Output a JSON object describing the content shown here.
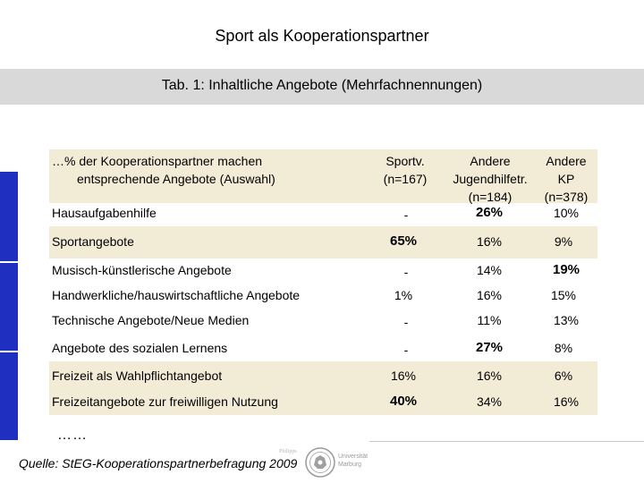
{
  "page": {
    "title": "Sport als Kooperationspartner",
    "subtitle": "Tab. 1: Inhaltliche Angebote (Mehrfachnennungen)"
  },
  "table": {
    "header_left": [
      "…% der Kooperationspartner machen",
      "entsprechende Angebote (Auswahl)"
    ],
    "columns": [
      {
        "lines": [
          "Sportv.",
          "(n=167)"
        ]
      },
      {
        "lines": [
          "Andere",
          "Jugendhilfetr.",
          "(n=184)"
        ]
      },
      {
        "lines": [
          "Andere",
          "KP",
          "(n=378)"
        ]
      }
    ],
    "rows": [
      {
        "label": "Hausaufgabenhilfe",
        "values": [
          "-",
          "26%",
          "10%"
        ]
      },
      {
        "label": "Sportangebote",
        "values": [
          "65%",
          "16%",
          "9%"
        ]
      },
      {
        "label": "Musisch-künstlerische Angebote",
        "values": [
          "-",
          "14%",
          "19%"
        ]
      },
      {
        "label": "Handwerkliche/hauswirtschaftliche Angebote",
        "values": [
          "1%",
          "16%",
          "15%"
        ]
      },
      {
        "label": "Technische Angebote/Neue Medien",
        "values": [
          "-",
          "11%",
          "13%"
        ]
      },
      {
        "label": "Angebote des sozialen Lernens",
        "values": [
          "-",
          "27%",
          "8%"
        ]
      },
      {
        "label": "Freizeit als Wahlpflichtangebot",
        "values": [
          "16%",
          "16%",
          "6%"
        ]
      },
      {
        "label": "Freizeitangebote zur freiwilligen Nutzung",
        "values": [
          "40%",
          "34%",
          "16%"
        ]
      }
    ],
    "ellipsis": "……"
  },
  "footer": {
    "source": "Quelle: StEG-Kooperationspartnerbefragung 2009",
    "logo_text": [
      "Universität",
      "Marburg"
    ],
    "logo_small": "Philipps"
  },
  "colors": {
    "tan": "#f2ebd6",
    "grey_bar": "#d9d9d9",
    "blue_bar": "#1f2fbf"
  }
}
